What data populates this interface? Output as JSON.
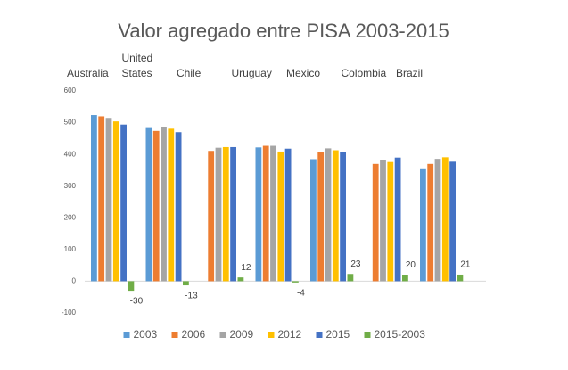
{
  "chart_data": {
    "type": "bar",
    "title": "Valor agregado entre PISA 2003-2015",
    "categories": [
      "Australia",
      "United States",
      "Chile",
      "Uruguay",
      "Mexico",
      "Colombia",
      "Brazil"
    ],
    "series": [
      {
        "name": "2003",
        "color": "#5b9bd5",
        "values": [
          524,
          483,
          null,
          422,
          385,
          null,
          356
        ]
      },
      {
        "name": "2006",
        "color": "#ed7d31",
        "values": [
          520,
          474,
          411,
          427,
          406,
          370,
          370
        ]
      },
      {
        "name": "2009",
        "color": "#a5a5a5",
        "values": [
          515,
          487,
          421,
          427,
          419,
          381,
          386
        ]
      },
      {
        "name": "2012",
        "color": "#ffc000",
        "values": [
          504,
          481,
          423,
          409,
          413,
          376,
          391
        ]
      },
      {
        "name": "2015",
        "color": "#4472c4",
        "values": [
          494,
          470,
          423,
          418,
          408,
          390,
          377
        ]
      },
      {
        "name": "2015-2003",
        "color": "#70ad47",
        "values": [
          -30,
          -13,
          12,
          -4,
          23,
          20,
          21
        ],
        "data_labels": true
      }
    ],
    "ylim": [
      -100,
      600
    ],
    "yticks": [
      -100,
      0,
      100,
      200,
      300,
      400,
      500,
      600
    ],
    "legend": "bottom"
  }
}
